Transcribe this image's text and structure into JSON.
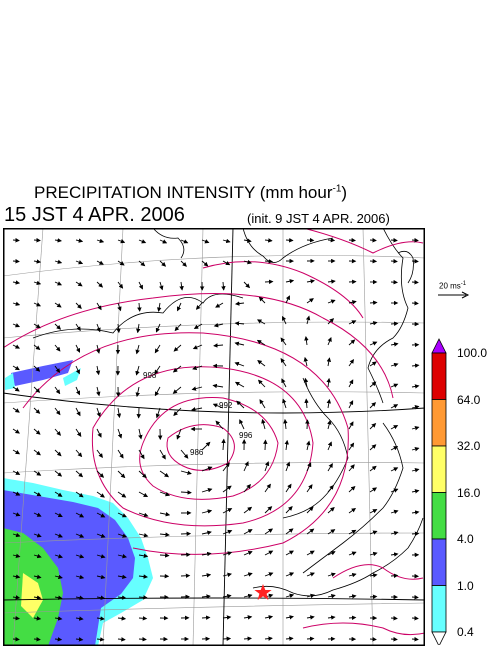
{
  "title": {
    "main": "PRECIPITATION INTENSITY (mm hour",
    "exponent": "-1",
    "close": ")"
  },
  "valid_time": "15 JST 4 APR. 2006",
  "init_time": "(init. 9 JST 4 APR. 2006)",
  "wind_scale": {
    "value": "20 ms",
    "exponent": "-1"
  },
  "colorbar": {
    "labels": [
      "100.0",
      "64.0",
      "32.0",
      "16.0",
      "4.0",
      "1.0",
      "0.4"
    ],
    "colors": [
      "#dd0000",
      "#ff9933",
      "#ffff66",
      "#44dd44",
      "#5a5aff",
      "#66ffff"
    ],
    "over_color": "#aa00ff",
    "under_color": "#ffffff"
  },
  "isobars": {
    "color": "#cc0066",
    "labels": [
      "986",
      "992",
      "998",
      "996"
    ]
  },
  "marker": {
    "symbol": "star",
    "color": "#ff2222"
  }
}
